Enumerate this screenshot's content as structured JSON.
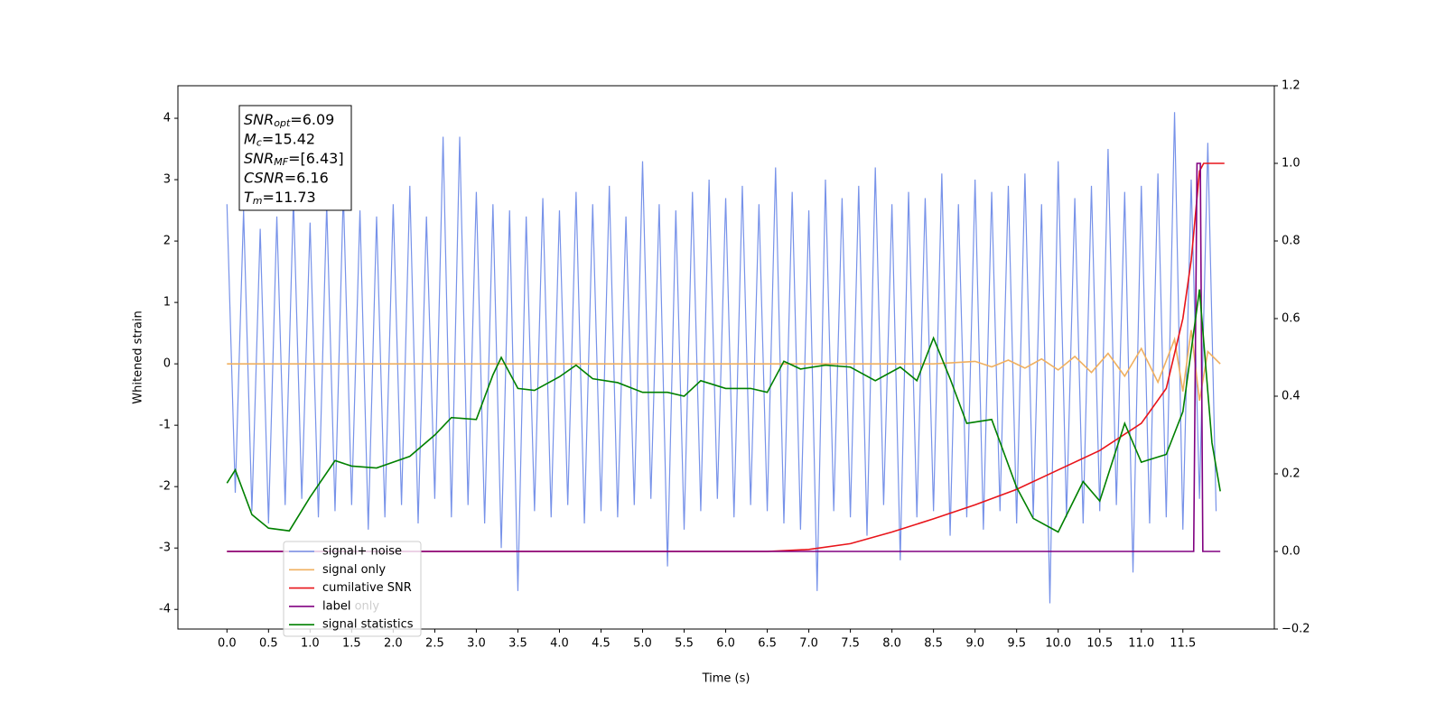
{
  "chart_data": {
    "type": "line",
    "xlabel": "Time (s)",
    "ylabel": "Whitened strain",
    "xlim": [
      -0.59,
      12.6
    ],
    "ylim": [
      -4.32,
      4.53
    ],
    "y2lim": [
      -0.2,
      1.2
    ],
    "xticks": [
      {
        "value": 0,
        "label": "0.0"
      },
      0.5,
      {
        "value": 1,
        "label": "1.0"
      },
      1.5,
      {
        "value": 2,
        "label": "2.0"
      },
      2.5,
      {
        "value": 3,
        "label": "3.0"
      },
      3.5,
      {
        "value": 4,
        "label": "4.0"
      },
      4.5,
      {
        "value": 5,
        "label": "5.0"
      },
      5.5,
      {
        "value": 6,
        "label": "6.0"
      },
      6.5,
      {
        "value": 7,
        "label": "7.0"
      },
      7.5,
      {
        "value": 8,
        "label": "8.0"
      },
      8.5,
      {
        "value": 9,
        "label": "9.0"
      },
      9.5,
      {
        "value": 10,
        "label": "10.0"
      },
      10.5,
      {
        "value": 11,
        "label": "11.0"
      },
      11.5
    ],
    "yticks": [
      -4,
      -3,
      -2,
      -1,
      0,
      1,
      2,
      3,
      4
    ],
    "y2ticks": [
      {
        "value": -0.2,
        "label": "−0.2"
      },
      {
        "value": 0,
        "label": "0.0"
      },
      0.2,
      0.4,
      0.6,
      0.8,
      {
        "value": 1,
        "label": "1.0"
      },
      1.2
    ],
    "legend": "lower left",
    "annotation": [
      {
        "main": "SNR",
        "sub": "opt",
        "rest": "=6.09"
      },
      {
        "main": "M",
        "sub": "c",
        "rest": "=15.42"
      },
      {
        "main": "SNR",
        "sub": "MF",
        "rest": "=[6.43]"
      },
      {
        "main": "CSNR",
        "sub": "",
        "rest": "=6.16"
      },
      {
        "main": "T",
        "sub": "m",
        "rest": "=11.73"
      }
    ],
    "hidden_legend_text": "label only",
    "series": [
      {
        "name": "signal+ noise",
        "color": "#7792e9",
        "axis": "y",
        "x": [
          0,
          0.1,
          0.2,
          0.3,
          0.4,
          0.5,
          0.6,
          0.7,
          0.8,
          0.9,
          1,
          1.1,
          1.2,
          1.3,
          1.4,
          1.5,
          1.6,
          1.7,
          1.8,
          1.9,
          2,
          2.1,
          2.2,
          2.3,
          2.4,
          2.5,
          2.6,
          2.7,
          2.8,
          2.9,
          3,
          3.1,
          3.2,
          3.3,
          3.4,
          3.5,
          3.6,
          3.7,
          3.8,
          3.9,
          4,
          4.1,
          4.2,
          4.3,
          4.4,
          4.5,
          4.6,
          4.7,
          4.8,
          4.9,
          5,
          5.1,
          5.2,
          5.3,
          5.4,
          5.5,
          5.6,
          5.7,
          5.8,
          5.9,
          6,
          6.1,
          6.2,
          6.3,
          6.4,
          6.5,
          6.6,
          6.7,
          6.8,
          6.9,
          7,
          7.1,
          7.2,
          7.3,
          7.4,
          7.5,
          7.6,
          7.7,
          7.8,
          7.9,
          8,
          8.1,
          8.2,
          8.3,
          8.4,
          8.5,
          8.6,
          8.7,
          8.8,
          8.9,
          9,
          9.1,
          9.2,
          9.3,
          9.4,
          9.5,
          9.6,
          9.7,
          9.8,
          9.9,
          10,
          10.1,
          10.2,
          10.3,
          10.4,
          10.5,
          10.6,
          10.7,
          10.8,
          10.9,
          11,
          11.1,
          11.2,
          11.3,
          11.4,
          11.5,
          11.6,
          11.7,
          11.8,
          11.9
        ],
        "values": [
          2.6,
          -2.1,
          2.5,
          -2.4,
          2.2,
          -2.6,
          2.4,
          -2.3,
          2.7,
          -2.2,
          2.3,
          -2.5,
          2.6,
          -2.4,
          2.8,
          -2.3,
          2.5,
          -2.7,
          2.4,
          -2.5,
          2.6,
          -2.3,
          2.9,
          -2.6,
          2.4,
          -2.2,
          3.7,
          -2.5,
          3.7,
          -2.3,
          2.8,
          -2.6,
          2.6,
          -3.0,
          2.5,
          -3.7,
          2.4,
          -2.4,
          2.7,
          -2.5,
          2.5,
          -2.3,
          2.8,
          -2.6,
          2.6,
          -2.4,
          2.9,
          -2.5,
          2.4,
          -2.3,
          3.3,
          -2.2,
          2.6,
          -3.3,
          2.5,
          -2.7,
          2.8,
          -2.4,
          3.0,
          -2.2,
          2.7,
          -2.5,
          2.9,
          -2.3,
          2.6,
          -2.4,
          3.2,
          -2.6,
          2.8,
          -2.7,
          2.5,
          -3.7,
          3.0,
          -2.4,
          2.7,
          -2.5,
          2.9,
          -2.8,
          3.2,
          -2.3,
          2.6,
          -3.2,
          2.8,
          -2.5,
          2.7,
          -2.4,
          3.1,
          -2.8,
          2.6,
          -2.5,
          3.0,
          -2.7,
          2.8,
          -2.4,
          2.9,
          -2.6,
          3.1,
          -2.5,
          2.6,
          -3.9,
          3.3,
          -2.5,
          2.7,
          -2.6,
          2.9,
          -2.4,
          3.5,
          -2.3,
          2.8,
          -3.4,
          2.9,
          -2.6,
          3.1,
          -2.5,
          4.1,
          -2.7,
          3.0,
          -2.2,
          3.6,
          -2.4
        ]
      },
      {
        "name": "signal only",
        "color": "#f0b060",
        "axis": "y",
        "x": [
          0,
          8.5,
          9,
          9.2,
          9.4,
          9.6,
          9.8,
          10,
          10.2,
          10.4,
          10.6,
          10.8,
          11,
          11.2,
          11.4,
          11.5,
          11.6,
          11.7,
          11.8,
          11.95
        ],
        "values": [
          0,
          0,
          0.04,
          -0.05,
          0.06,
          -0.07,
          0.08,
          -0.1,
          0.12,
          -0.14,
          0.17,
          -0.2,
          0.25,
          -0.3,
          0.4,
          -0.45,
          0.55,
          -0.6,
          0.2,
          0
        ]
      },
      {
        "name": "cumilative SNR",
        "color": "#e8141a",
        "axis": "y2",
        "x": [
          0,
          6.5,
          7,
          7.5,
          8,
          8.5,
          9,
          9.5,
          10,
          10.5,
          11,
          11.3,
          11.5,
          11.6,
          11.7,
          11.75,
          12
        ],
        "values": [
          0,
          0,
          0.005,
          0.02,
          0.05,
          0.084,
          0.12,
          0.16,
          0.21,
          0.26,
          0.33,
          0.42,
          0.6,
          0.75,
          0.98,
          1,
          1
        ]
      },
      {
        "name": "label",
        "color": "#800080",
        "axis": "y2",
        "x": [
          0,
          11.63,
          11.67,
          11.71,
          11.74,
          11.95
        ],
        "values": [
          0,
          0,
          1,
          1,
          0,
          0
        ]
      },
      {
        "name": "signal statistics",
        "color": "#008000",
        "axis": "y2",
        "x": [
          0,
          0.1,
          0.3,
          0.5,
          0.75,
          1,
          1.3,
          1.5,
          1.8,
          2.2,
          2.5,
          2.7,
          3,
          3.2,
          3.3,
          3.5,
          3.7,
          4,
          4.2,
          4.4,
          4.7,
          5,
          5.3,
          5.5,
          5.7,
          6,
          6.3,
          6.5,
          6.7,
          6.9,
          7.2,
          7.5,
          7.8,
          8.1,
          8.3,
          8.5,
          8.7,
          8.9,
          9.2,
          9.5,
          9.7,
          10,
          10.3,
          10.5,
          10.8,
          11,
          11.3,
          11.5,
          11.7,
          11.85,
          11.95
        ],
        "values": [
          0.176,
          0.21,
          0.095,
          0.06,
          0.053,
          0.14,
          0.234,
          0.22,
          0.215,
          0.245,
          0.3,
          0.345,
          0.34,
          0.455,
          0.5,
          0.42,
          0.415,
          0.45,
          0.48,
          0.445,
          0.435,
          0.41,
          0.41,
          0.4,
          0.44,
          0.42,
          0.42,
          0.41,
          0.49,
          0.47,
          0.48,
          0.475,
          0.44,
          0.475,
          0.44,
          0.55,
          0.445,
          0.33,
          0.34,
          0.165,
          0.085,
          0.05,
          0.18,
          0.13,
          0.33,
          0.23,
          0.25,
          0.36,
          0.675,
          0.28,
          0.155
        ]
      }
    ]
  }
}
